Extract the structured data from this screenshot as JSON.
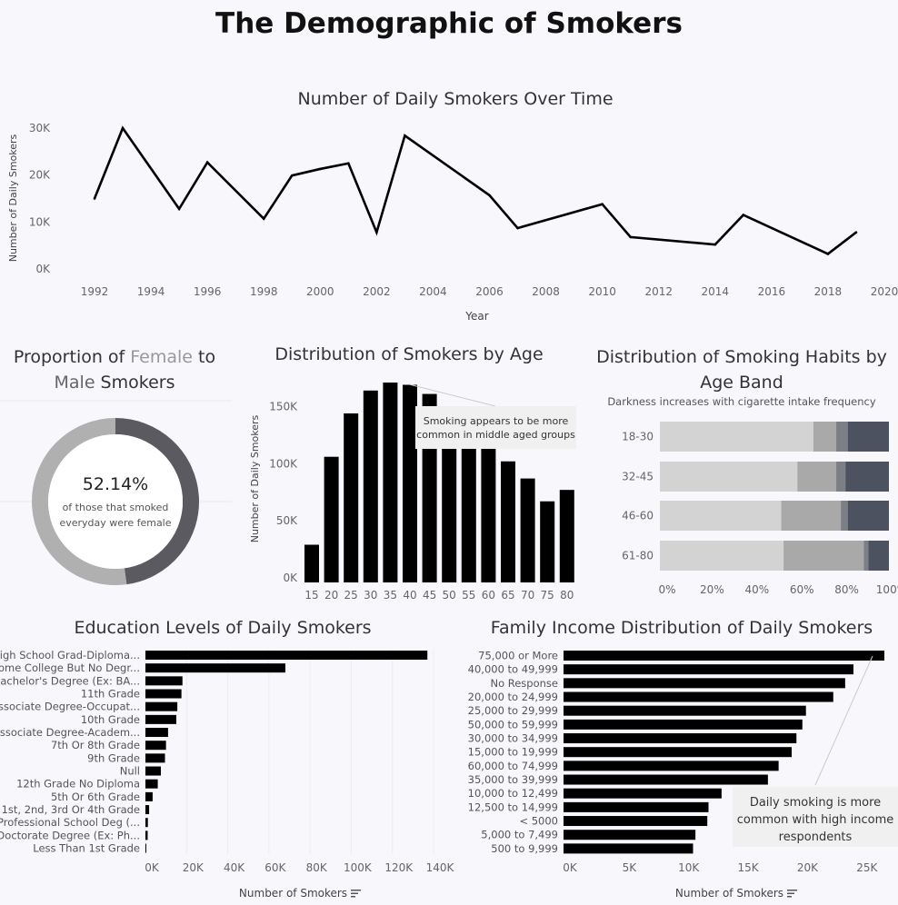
{
  "main_title": "The Demographic of Smokers",
  "chart_data": [
    {
      "id": "line",
      "type": "line",
      "title": "Number of Daily Smokers Over Time",
      "xlabel": "Year",
      "ylabel": "Number of Daily Smokers",
      "x": [
        1992,
        1993,
        1995,
        1996,
        1998,
        1999,
        2000,
        2001,
        2002,
        2003,
        2006,
        2007,
        2010,
        2011,
        2014,
        2015,
        2018,
        2019
      ],
      "values": [
        15000,
        30000,
        12800,
        22700,
        10700,
        19900,
        21300,
        22500,
        7800,
        28400,
        15700,
        8700,
        13800,
        6800,
        5200,
        11500,
        3200,
        7800
      ],
      "xticks": [
        "1992",
        "1994",
        "1996",
        "1998",
        "2000",
        "2002",
        "2004",
        "2006",
        "2008",
        "2010",
        "2012",
        "2014",
        "2016",
        "2018",
        "2020"
      ],
      "yticks": [
        "0K",
        "10K",
        "20K",
        "30K"
      ],
      "ylim": [
        0,
        30000
      ],
      "xlim": [
        1992,
        2020
      ]
    },
    {
      "id": "donut",
      "type": "pie",
      "title_parts": [
        "Proportion of ",
        "Female",
        " to ",
        "Male",
        " Smokers"
      ],
      "values": [
        52.14,
        47.86
      ],
      "labels": [
        "Female",
        "Male"
      ],
      "center_value": "52.14%",
      "center_text_1": "of those that smoked",
      "center_text_2": "everyday were female",
      "colors": {
        "female": "#b0b0b0",
        "male": "#5a5a60"
      }
    },
    {
      "id": "age",
      "type": "bar",
      "title": "Distribution of Smokers by Age",
      "ylabel": "Number of Daily Smokers",
      "categories": [
        "15",
        "20",
        "25",
        "30",
        "35",
        "40",
        "45",
        "50",
        "55",
        "60",
        "65",
        "70",
        "75",
        "80"
      ],
      "values": [
        33000,
        110000,
        148000,
        168000,
        175000,
        173000,
        165000,
        140000,
        125000,
        118000,
        106000,
        91000,
        71000,
        81000
      ],
      "yticks": [
        "0K",
        "50K",
        "100K",
        "150K"
      ],
      "ylim": [
        0,
        175000
      ],
      "annotation": "Smoking appears to be more common in middle aged groups"
    },
    {
      "id": "habits",
      "type": "bar",
      "orientation": "horizontal-stacked",
      "title": "Distribution of Smoking Habits by Age Band",
      "subtitle": "Darkness increases with cigarette intake frequency",
      "categories": [
        "18-30",
        "32-45",
        "46-60",
        "61-80"
      ],
      "series": [
        {
          "name": "level-1",
          "values": [
            67,
            60,
            53,
            54
          ]
        },
        {
          "name": "level-2",
          "values": [
            10,
            17,
            26,
            35
          ]
        },
        {
          "name": "level-3",
          "values": [
            5,
            4,
            3,
            2
          ]
        },
        {
          "name": "level-4",
          "values": [
            18,
            19,
            18,
            9
          ]
        }
      ],
      "colors": [
        "#d3d3d3",
        "#a9a9a9",
        "#7c7f85",
        "#4d5260"
      ],
      "xticks": [
        "0%",
        "20%",
        "40%",
        "60%",
        "80%",
        "100%"
      ]
    },
    {
      "id": "education",
      "type": "bar",
      "orientation": "horizontal",
      "title": "Education Levels of Daily Smokers",
      "xlabel": "Number of Smokers",
      "categories": [
        "High School Grad-Diploma...",
        "Some College But No Degr...",
        "Bachelor's Degree (Ex: BA...",
        "11th Grade",
        "Associate Degree-Occupat...",
        "10th Grade",
        "Associate Degree-Academ...",
        "7th Or 8th Grade",
        "9th Grade",
        "Null",
        "12th Grade No Diploma",
        "5th Or 6th Grade",
        "1st, 2nd, 3rd Or 4th Grade",
        "Professional School Deg (...",
        "Doctorate Degree (Ex: Ph...",
        "Less Than 1st Grade"
      ],
      "values": [
        137000,
        68000,
        18000,
        17500,
        15500,
        15000,
        11000,
        10000,
        9500,
        7500,
        6000,
        3500,
        1800,
        1200,
        1100,
        300
      ],
      "xticks": [
        "0K",
        "20K",
        "40K",
        "60K",
        "80K",
        "100K",
        "120K",
        "140K"
      ],
      "xlim": [
        0,
        140000
      ]
    },
    {
      "id": "income",
      "type": "bar",
      "orientation": "horizontal",
      "title": "Family Income Distribution of Daily Smokers",
      "xlabel": "Number of Smokers",
      "categories": [
        "75,000 or More",
        "40,000 to 49,999",
        "No Response",
        "20,000 to 24,999",
        "25,000 to 29,999",
        "50,000 to 59,999",
        "30,000 to 34,999",
        "15,000 to 19,999",
        "60,000 to 74,999",
        "35,000 to 39,999",
        "10,000 to 12,499",
        "12,500 to 14,999",
        "< 5000",
        "5,000 to 7,499",
        "500 to 9,999"
      ],
      "values": [
        27000,
        24400,
        23700,
        22700,
        20400,
        20100,
        19600,
        19200,
        18100,
        17200,
        13300,
        12200,
        12100,
        11100,
        10900
      ],
      "xticks": [
        "0K",
        "5K",
        "10K",
        "15K",
        "20K",
        "25K"
      ],
      "xlim": [
        0,
        27000
      ],
      "annotation": "Daily smoking is more common with high income respondents"
    }
  ]
}
